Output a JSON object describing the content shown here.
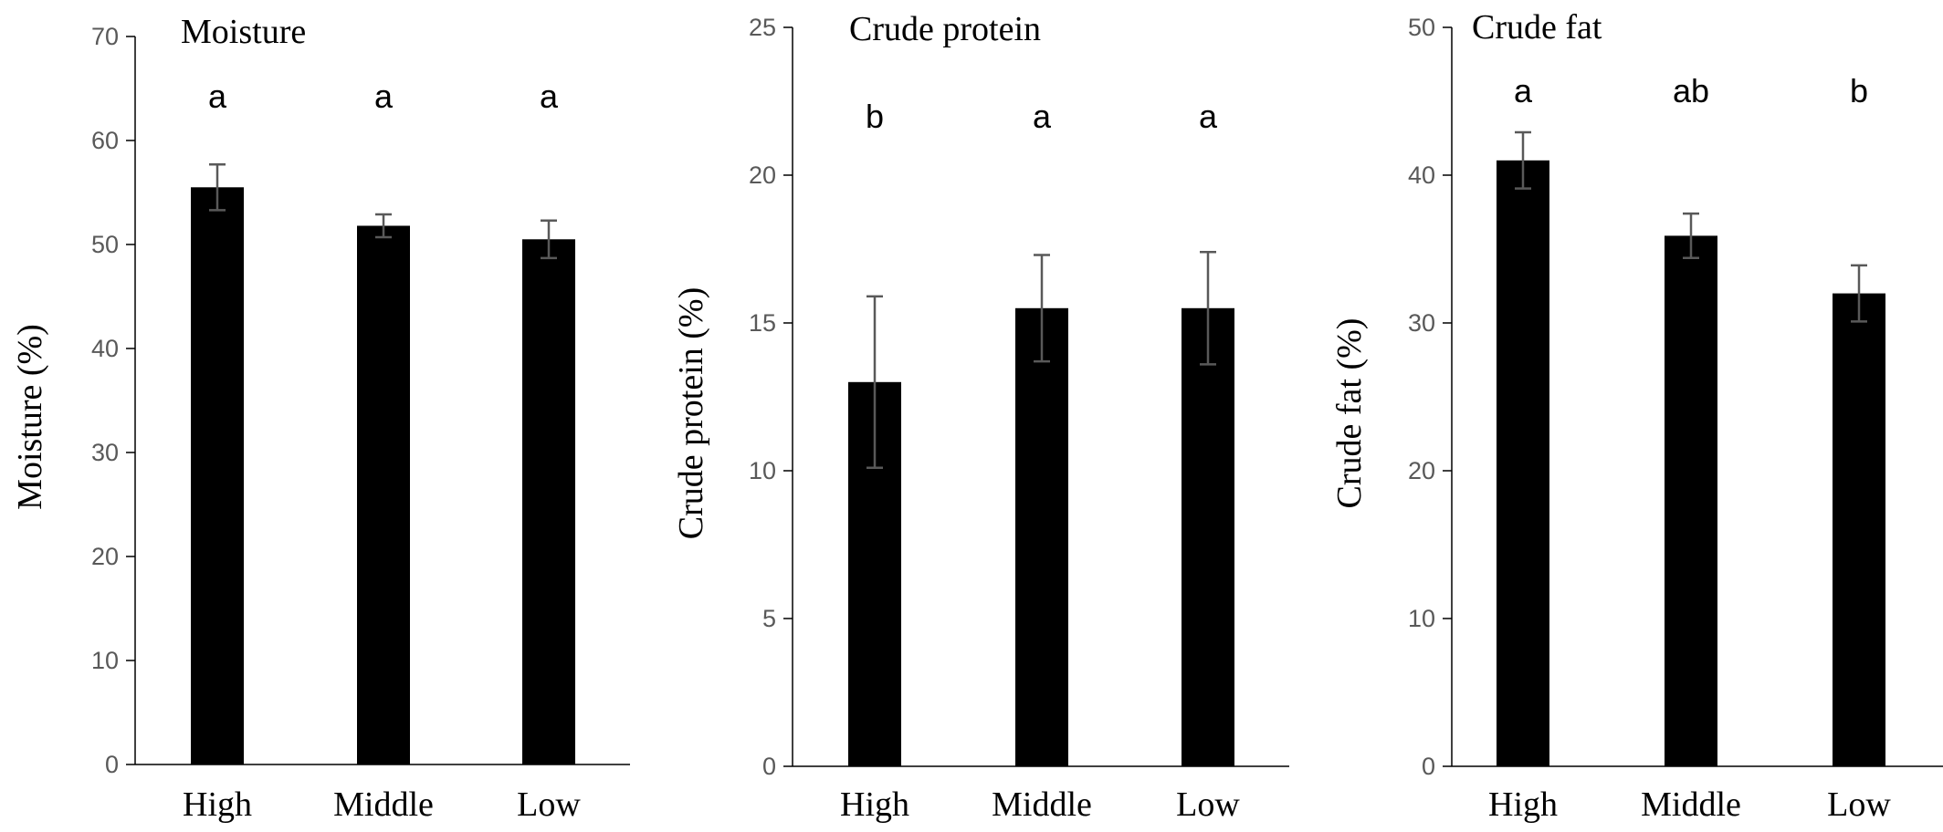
{
  "chart_data": [
    {
      "type": "bar",
      "title": "Moisture",
      "ylabel": "Moisture (%)",
      "xlabel": "",
      "categories": [
        "High",
        "Middle",
        "Low"
      ],
      "values": [
        55.5,
        51.8,
        50.5
      ],
      "errors": [
        2.2,
        1.1,
        1.8
      ],
      "significance": [
        "a",
        "a",
        "a"
      ],
      "ylim": [
        0,
        70
      ],
      "yticks": [
        0,
        10,
        20,
        30,
        40,
        50,
        60,
        70
      ],
      "grid": false,
      "bar_color": "#000000",
      "error_color": "#595959"
    },
    {
      "type": "bar",
      "title": "Crude protein",
      "ylabel": "Crude protein (%)",
      "xlabel": "",
      "categories": [
        "High",
        "Middle",
        "Low"
      ],
      "values": [
        13.0,
        15.5,
        15.5
      ],
      "errors": [
        2.9,
        1.8,
        1.9
      ],
      "significance": [
        "b",
        "a",
        "a"
      ],
      "ylim": [
        0,
        25
      ],
      "yticks": [
        0,
        5,
        10,
        15,
        20,
        25
      ],
      "grid": false,
      "bar_color": "#000000",
      "error_color": "#595959"
    },
    {
      "type": "bar",
      "title": "Crude fat",
      "ylabel": "Crude fat (%)",
      "xlabel": "",
      "categories": [
        "High",
        "Middle",
        "Low"
      ],
      "values": [
        41.0,
        35.9,
        32.0
      ],
      "errors": [
        1.9,
        1.5,
        1.9
      ],
      "significance": [
        "a",
        "ab",
        "b"
      ],
      "ylim": [
        0,
        50
      ],
      "yticks": [
        0,
        10,
        20,
        30,
        40,
        50
      ],
      "grid": false,
      "bar_color": "#000000",
      "error_color": "#595959"
    }
  ]
}
